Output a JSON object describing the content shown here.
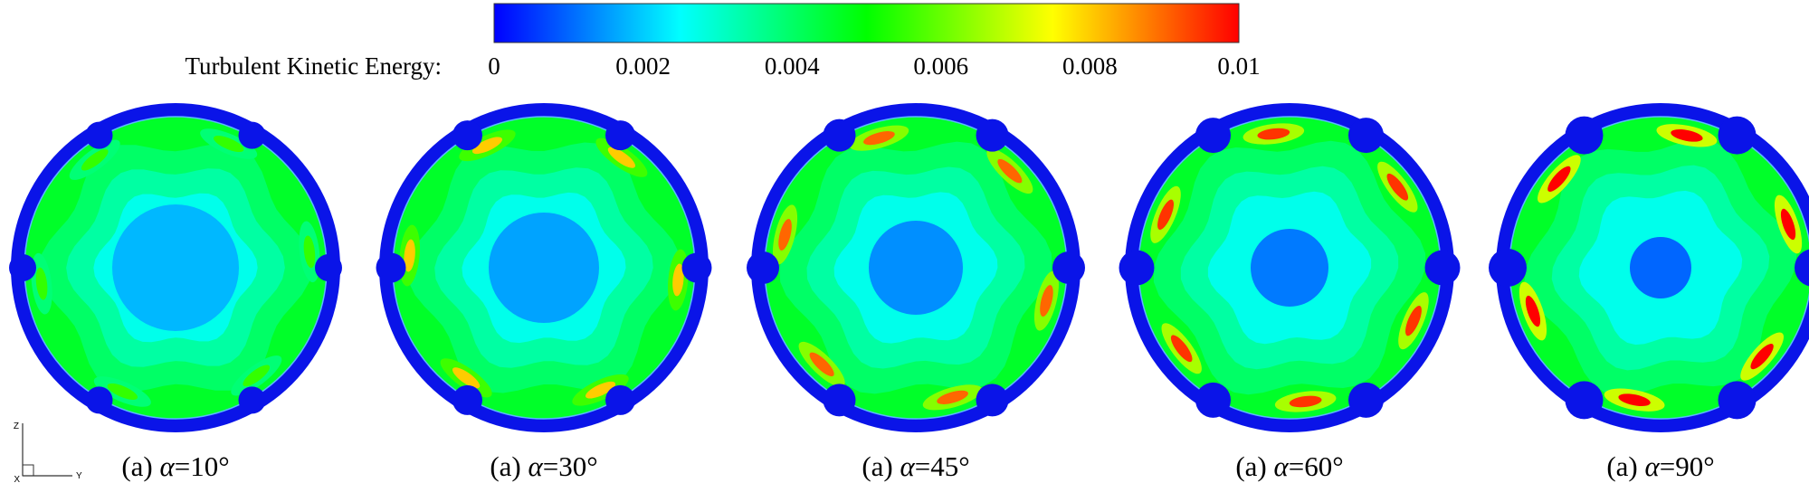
{
  "legend": {
    "title": "Turbulent Kinetic Energy:",
    "ticks": [
      "0",
      "0.002",
      "0.004",
      "0.006",
      "0.008",
      "0.01"
    ],
    "range": [
      0,
      0.01
    ],
    "colors": [
      "#0000ff",
      "#00ffff",
      "#00ff00",
      "#ffff00",
      "#ff0000"
    ]
  },
  "panels": [
    {
      "prefix": "(a)",
      "symbol": "α",
      "value": "=10°",
      "angle": 10,
      "core_level": 0.18,
      "peak_level": 0.55
    },
    {
      "prefix": "(a)",
      "symbol": "α",
      "value": "=30°",
      "angle": 30,
      "core_level": 0.16,
      "peak_level": 0.8
    },
    {
      "prefix": "(a)",
      "symbol": "α",
      "value": "=45°",
      "angle": 45,
      "core_level": 0.14,
      "peak_level": 0.9
    },
    {
      "prefix": "(a)",
      "symbol": "α",
      "value": "=60°",
      "angle": 60,
      "core_level": 0.12,
      "peak_level": 0.95
    },
    {
      "prefix": "(a)",
      "symbol": "α",
      "value": "=90°",
      "angle": 90,
      "core_level": 0.1,
      "peak_level": 1.0
    }
  ],
  "triad": {
    "vertical": "Z",
    "horizontal": "Y",
    "origin": "X"
  }
}
